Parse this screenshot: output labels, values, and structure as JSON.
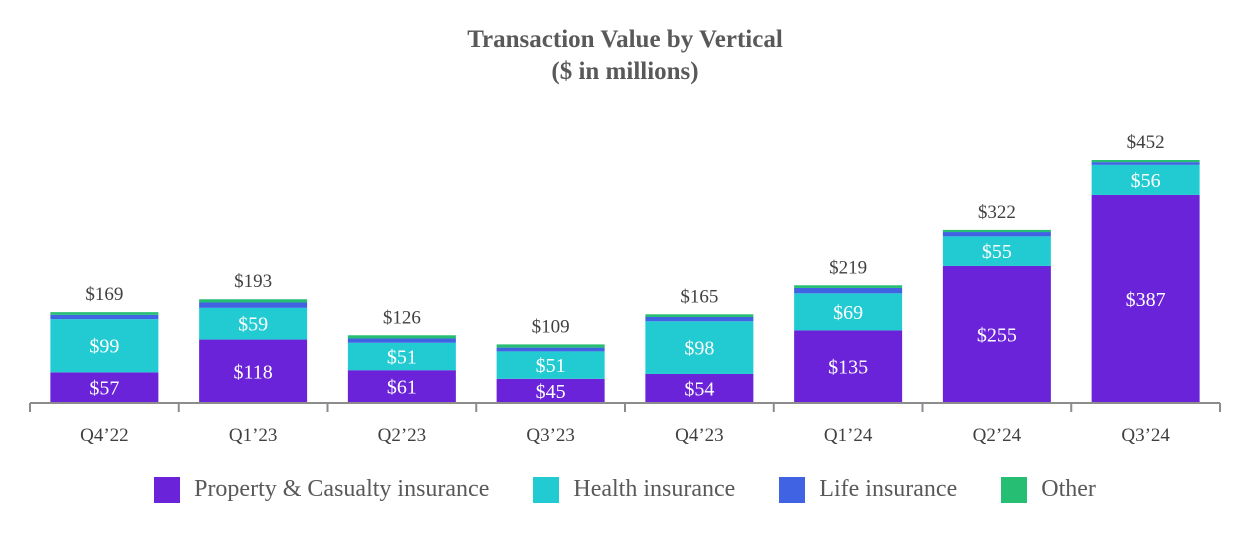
{
  "chart_data": {
    "type": "bar",
    "stacked": true,
    "title": "Transaction Value by Vertical",
    "subtitle": "($ in millions)",
    "categories": [
      "Q4’22",
      "Q1’23",
      "Q2’23",
      "Q3’23",
      "Q4’23",
      "Q1’24",
      "Q2’24",
      "Q3’24"
    ],
    "series": [
      {
        "name": "Property & Casualty insurance",
        "color": "#6A23D8",
        "values": [
          57,
          118,
          61,
          45,
          54,
          135,
          255,
          387
        ],
        "labels": [
          "$57",
          "$118",
          "$61",
          "$45",
          "$54",
          "$135",
          "$255",
          "$387"
        ]
      },
      {
        "name": "Health insurance",
        "color": "#22CBD1",
        "values": [
          99,
          59,
          51,
          51,
          98,
          69,
          55,
          56
        ],
        "labels": [
          "$99",
          "$59",
          "$51",
          "$51",
          "$98",
          "$69",
          "$55",
          "$56"
        ]
      },
      {
        "name": "Life insurance",
        "color": "#3F63E3",
        "values": [
          8,
          10,
          8,
          7,
          8,
          10,
          8,
          5
        ]
      },
      {
        "name": "Other",
        "color": "#26BE73",
        "values": [
          5,
          6,
          6,
          6,
          5,
          5,
          4,
          4
        ]
      }
    ],
    "totals": [
      169,
      193,
      126,
      109,
      165,
      219,
      322,
      452
    ],
    "total_labels": [
      "$169",
      "$193",
      "$126",
      "$109",
      "$165",
      "$219",
      "$322",
      "$452"
    ],
    "ylim": [
      0,
      452
    ],
    "legend_position": "bottom",
    "grid": false
  }
}
